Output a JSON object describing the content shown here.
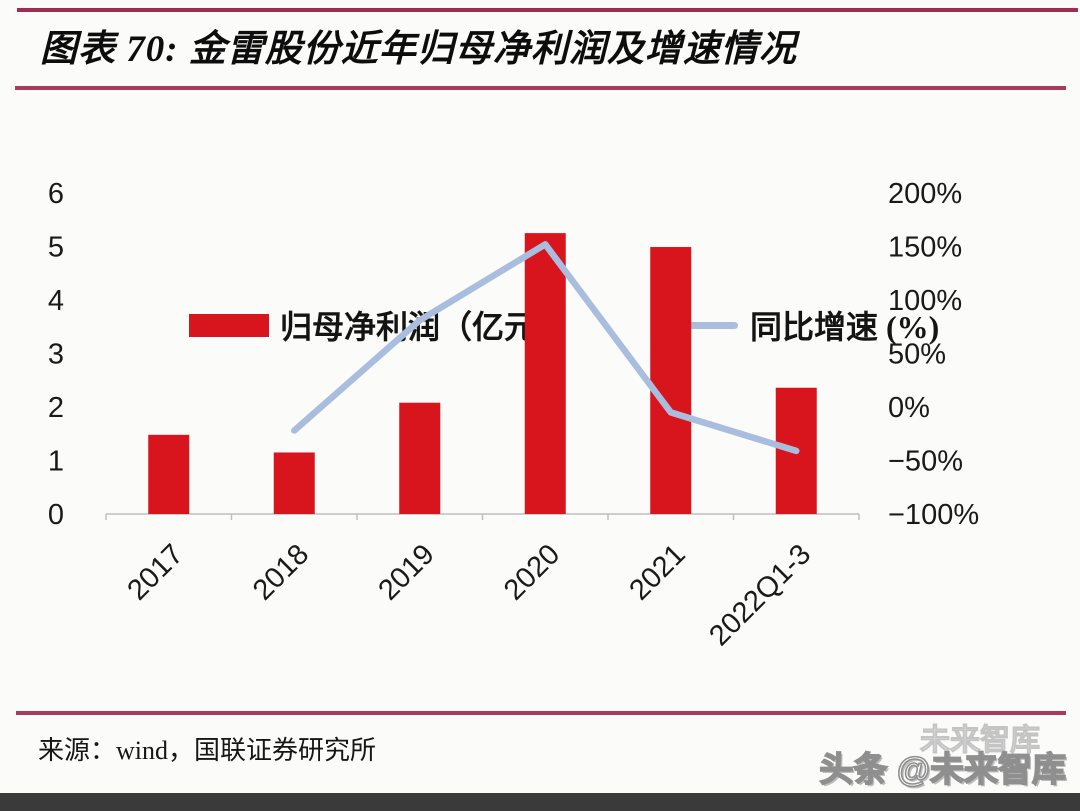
{
  "header": {
    "title": "图表 70: 金雷股份近年归母净利润及增速情况"
  },
  "legend": {
    "bar_label": "归母净利润（亿元）",
    "line_label": "同比增速 (%)"
  },
  "chart_data": {
    "type": "bar+line combo",
    "categories": [
      "2017",
      "2018",
      "2019",
      "2020",
      "2021",
      "2022Q1-3"
    ],
    "series": [
      {
        "name": "归母净利润（亿元）",
        "type": "bar",
        "axis": "left",
        "color": "#d8151d",
        "values": [
          1.48,
          1.15,
          2.08,
          5.25,
          4.99,
          2.36
        ]
      },
      {
        "name": "同比增速 (%)",
        "type": "line",
        "axis": "right",
        "color": "#a9bdde",
        "values": [
          null,
          -22,
          81,
          152,
          -5,
          -41
        ]
      }
    ],
    "left_axis": {
      "min": 0,
      "max": 6,
      "ticks": [
        6,
        5,
        4,
        3,
        2,
        1,
        0
      ]
    },
    "right_axis": {
      "min": -100,
      "max": 200,
      "ticks": [
        {
          "value": 200,
          "label": "200%"
        },
        {
          "value": 150,
          "label": "150%"
        },
        {
          "value": 100,
          "label": "100%"
        },
        {
          "value": 50,
          "label": "50%"
        },
        {
          "value": 0,
          "label": "0%"
        },
        {
          "value": -50,
          "label": "−50%"
        },
        {
          "value": -100,
          "label": "−100%"
        }
      ]
    },
    "legend_position": "top",
    "grid": false,
    "title": "金雷股份近年归母净利润及增速情况"
  },
  "footer": {
    "source": "来源：wind，国联证券研究所",
    "watermark_ghost": "未来智库",
    "watermark_main": "头条 @未来智库"
  },
  "colors": {
    "bar": "#d8151d",
    "line": "#a9bdde",
    "rule": "#a02c50",
    "axis_line": "#bfbfbf",
    "bottom_band": "#3a3a3a"
  }
}
